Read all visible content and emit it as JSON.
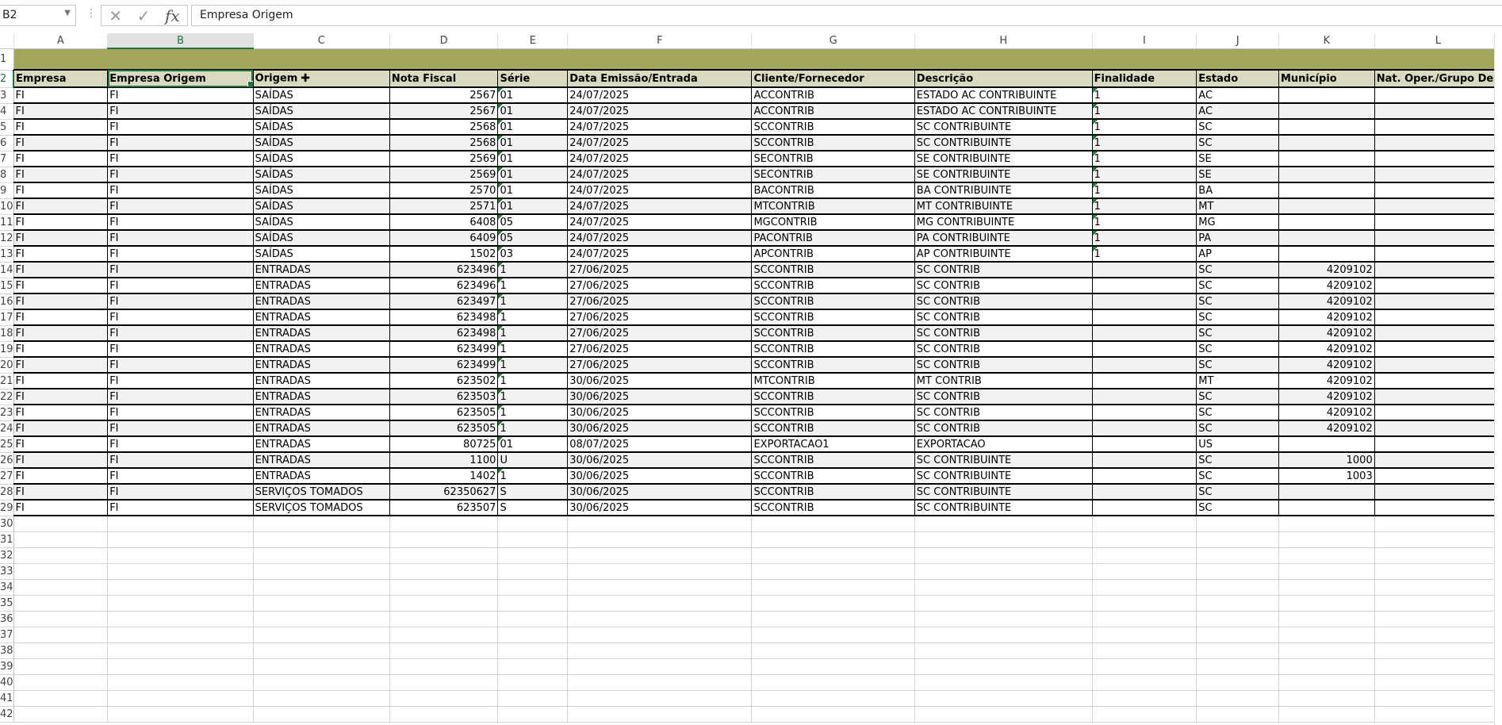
{
  "formula_bar": {
    "name_box": "B2",
    "formula": "Empresa Origem",
    "cancel_icon": "x-icon",
    "enter_icon": "check-icon",
    "fx_label": "fx"
  },
  "selected_cell": "B2",
  "colors": {
    "title_band": "#a2a55c",
    "header_fill": "#dadac0",
    "alt_row": "#f2f2f2",
    "selection": "#217346"
  },
  "columns": [
    "A",
    "B",
    "C",
    "D",
    "E",
    "F",
    "G",
    "H",
    "I",
    "J",
    "K",
    "L"
  ],
  "headers": [
    "Empresa",
    "Empresa Origem",
    "Origem",
    "Nota Fiscal",
    "Série",
    "Data Emissão/Entrada",
    "Cliente/Fornecedor",
    "Descrição",
    "Finalidade",
    "Estado",
    "Município",
    "Nat. Oper./Grupo Des"
  ],
  "rows": [
    [
      "FI",
      "FI",
      "SAÍDAS",
      "2567",
      "01",
      "24/07/2025",
      "ACCONTRIB",
      "ESTADO AC CONTRIBUINTE",
      "1",
      "AC",
      "",
      ""
    ],
    [
      "FI",
      "FI",
      "SAÍDAS",
      "2567",
      "01",
      "24/07/2025",
      "ACCONTRIB",
      "ESTADO AC CONTRIBUINTE",
      "1",
      "AC",
      "",
      ""
    ],
    [
      "FI",
      "FI",
      "SAÍDAS",
      "2568",
      "01",
      "24/07/2025",
      "SCCONTRIB",
      "SC CONTRIBUINTE",
      "1",
      "SC",
      "",
      ""
    ],
    [
      "FI",
      "FI",
      "SAÍDAS",
      "2568",
      "01",
      "24/07/2025",
      "SCCONTRIB",
      "SC CONTRIBUINTE",
      "1",
      "SC",
      "",
      ""
    ],
    [
      "FI",
      "FI",
      "SAÍDAS",
      "2569",
      "01",
      "24/07/2025",
      "SECONTRIB",
      "SE CONTRIBUINTE",
      "1",
      "SE",
      "",
      ""
    ],
    [
      "FI",
      "FI",
      "SAÍDAS",
      "2569",
      "01",
      "24/07/2025",
      "SECONTRIB",
      "SE CONTRIBUINTE",
      "1",
      "SE",
      "",
      ""
    ],
    [
      "FI",
      "FI",
      "SAÍDAS",
      "2570",
      "01",
      "24/07/2025",
      "BACONTRIB",
      "BA CONTRIBUINTE",
      "1",
      "BA",
      "",
      ""
    ],
    [
      "FI",
      "FI",
      "SAÍDAS",
      "2571",
      "01",
      "24/07/2025",
      "MTCONTRIB",
      "MT CONTRIBUINTE",
      "1",
      "MT",
      "",
      ""
    ],
    [
      "FI",
      "FI",
      "SAÍDAS",
      "6408",
      "05",
      "24/07/2025",
      "MGCONTRIB",
      "MG CONTRIBUINTE",
      "1",
      "MG",
      "",
      ""
    ],
    [
      "FI",
      "FI",
      "SAÍDAS",
      "6409",
      "05",
      "24/07/2025",
      "PACONTRIB",
      "PA CONTRIBUINTE",
      "1",
      "PA",
      "",
      ""
    ],
    [
      "FI",
      "FI",
      "SAÍDAS",
      "1502",
      "03",
      "24/07/2025",
      "APCONTRIB",
      "AP CONTRIBUINTE",
      "1",
      "AP",
      "",
      ""
    ],
    [
      "FI",
      "FI",
      "ENTRADAS",
      "623496",
      "1",
      "27/06/2025",
      "SCCONTRIB",
      "SC CONTRIB",
      "",
      "SC",
      "4209102",
      ""
    ],
    [
      "FI",
      "FI",
      "ENTRADAS",
      "623496",
      "1",
      "27/06/2025",
      "SCCONTRIB",
      "SC CONTRIB",
      "",
      "SC",
      "4209102",
      ""
    ],
    [
      "FI",
      "FI",
      "ENTRADAS",
      "623497",
      "1",
      "27/06/2025",
      "SCCONTRIB",
      "SC CONTRIB",
      "",
      "SC",
      "4209102",
      ""
    ],
    [
      "FI",
      "FI",
      "ENTRADAS",
      "623498",
      "1",
      "27/06/2025",
      "SCCONTRIB",
      "SC CONTRIB",
      "",
      "SC",
      "4209102",
      ""
    ],
    [
      "FI",
      "FI",
      "ENTRADAS",
      "623498",
      "1",
      "27/06/2025",
      "SCCONTRIB",
      "SC CONTRIB",
      "",
      "SC",
      "4209102",
      ""
    ],
    [
      "FI",
      "FI",
      "ENTRADAS",
      "623499",
      "1",
      "27/06/2025",
      "SCCONTRIB",
      "SC CONTRIB",
      "",
      "SC",
      "4209102",
      ""
    ],
    [
      "FI",
      "FI",
      "ENTRADAS",
      "623499",
      "1",
      "27/06/2025",
      "SCCONTRIB",
      "SC CONTRIB",
      "",
      "SC",
      "4209102",
      ""
    ],
    [
      "FI",
      "FI",
      "ENTRADAS",
      "623502",
      "1",
      "30/06/2025",
      "MTCONTRIB",
      "MT CONTRIB",
      "",
      "MT",
      "4209102",
      ""
    ],
    [
      "FI",
      "FI",
      "ENTRADAS",
      "623503",
      "1",
      "30/06/2025",
      "SCCONTRIB",
      "SC CONTRIB",
      "",
      "SC",
      "4209102",
      ""
    ],
    [
      "FI",
      "FI",
      "ENTRADAS",
      "623505",
      "1",
      "30/06/2025",
      "SCCONTRIB",
      "SC CONTRIB",
      "",
      "SC",
      "4209102",
      ""
    ],
    [
      "FI",
      "FI",
      "ENTRADAS",
      "623505",
      "1",
      "30/06/2025",
      "SCCONTRIB",
      "SC CONTRIB",
      "",
      "SC",
      "4209102",
      ""
    ],
    [
      "FI",
      "FI",
      "ENTRADAS",
      "80725",
      "01",
      "08/07/2025",
      "EXPORTACAO1",
      "EXPORTACAO",
      "",
      "US",
      "",
      ""
    ],
    [
      "FI",
      "FI",
      "ENTRADAS",
      "1100",
      "U",
      "30/06/2025",
      "SCCONTRIB",
      "SC CONTRIBUINTE",
      "",
      "SC",
      "1000",
      ""
    ],
    [
      "FI",
      "FI",
      "ENTRADAS",
      "1402",
      "1",
      "30/06/2025",
      "SCCONTRIB",
      "SC CONTRIBUINTE",
      "",
      "SC",
      "1003",
      ""
    ],
    [
      "FI",
      "FI",
      "SERVIÇOS TOMADOS",
      "62350627",
      "S",
      "30/06/2025",
      "SCCONTRIB",
      "SC CONTRIBUINTE",
      "",
      "SC",
      "",
      ""
    ],
    [
      "FI",
      "FI",
      "SERVIÇOS TOMADOS",
      "623507",
      "S",
      "30/06/2025",
      "SCCONTRIB",
      "SC CONTRIBUINTE",
      "",
      "SC",
      "",
      ""
    ]
  ],
  "row_numbers": [
    "1",
    "2",
    "3",
    "4",
    "5",
    "6",
    "7",
    "8",
    "9",
    "10",
    "11",
    "12",
    "13",
    "14",
    "15",
    "16",
    "17",
    "18",
    "19",
    "20",
    "21",
    "22",
    "23",
    "24",
    "25",
    "26",
    "27",
    "28",
    "29",
    "30",
    "31",
    "32",
    "33",
    "34",
    "35",
    "36",
    "37",
    "38",
    "39",
    "40",
    "41",
    "42"
  ]
}
